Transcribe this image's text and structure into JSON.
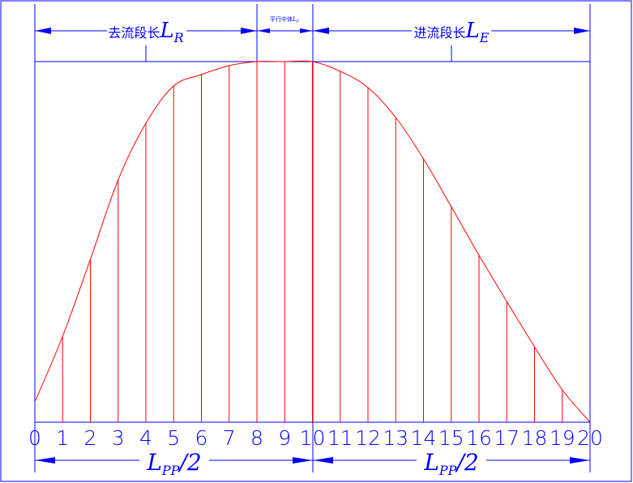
{
  "dimensions": {
    "run": {
      "text": "去流段长",
      "symbol": "L",
      "sub": "R"
    },
    "parallel": {
      "text": "平行中体",
      "symbol": "L",
      "sub": "P"
    },
    "entrance": {
      "text": "进流段长",
      "symbol": "L",
      "sub": "E"
    }
  },
  "half_length": {
    "symbol": "L",
    "sub": "PP",
    "suffix": "/2"
  },
  "stations": [
    "0",
    "1",
    "2",
    "3",
    "4",
    "5",
    "6",
    "7",
    "8",
    "9",
    "10",
    "11",
    "12",
    "13",
    "14",
    "15",
    "16",
    "17",
    "18",
    "19",
    "20"
  ]
}
